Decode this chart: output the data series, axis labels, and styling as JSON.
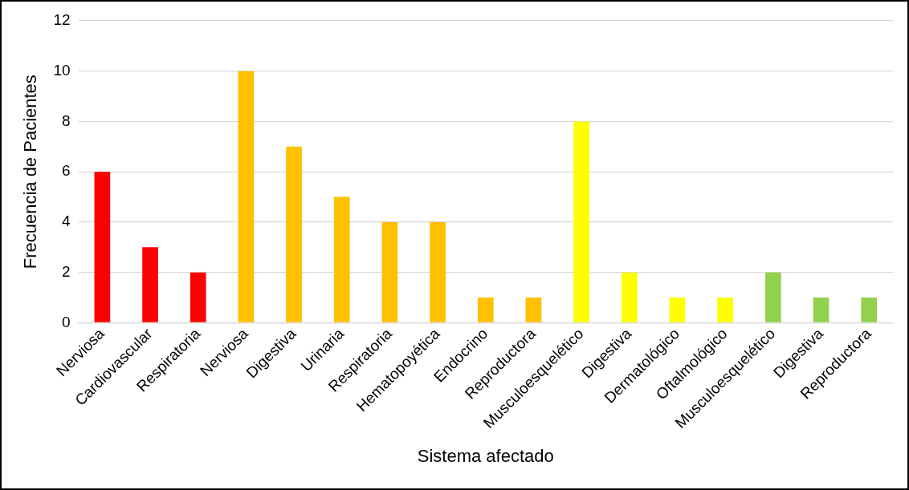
{
  "chart_data": {
    "type": "bar",
    "xlabel": "Sistema afectado",
    "ylabel": "Frecuencia de Pacientes",
    "categories": [
      "Nerviosa",
      "Cardiovascular",
      "Respiratoria",
      "Nerviosa",
      "Digestiva",
      "Urinaria",
      "Respiratoria",
      "Hematopoyética",
      "Endocrino",
      "Reproductora",
      "Musculoesquelético",
      "Digestiva",
      "Dermatológico",
      "Oftalmológico",
      "Musculoesquelético",
      "Digestiva",
      "Reproductora"
    ],
    "values": [
      6,
      3,
      2,
      10,
      7,
      5,
      4,
      4,
      1,
      1,
      8,
      2,
      1,
      1,
      2,
      1,
      1
    ],
    "colors": [
      "#ff0000",
      "#ff0000",
      "#ff0000",
      "#ffc000",
      "#ffc000",
      "#ffc000",
      "#ffc000",
      "#ffc000",
      "#ffc000",
      "#ffc000",
      "#ffff00",
      "#ffff00",
      "#ffff00",
      "#ffff00",
      "#92d050",
      "#92d050",
      "#92d050"
    ],
    "ylim": [
      0,
      12
    ],
    "yticks": [
      0,
      2,
      4,
      6,
      8,
      10,
      12
    ],
    "grid": "y",
    "legend": false
  }
}
